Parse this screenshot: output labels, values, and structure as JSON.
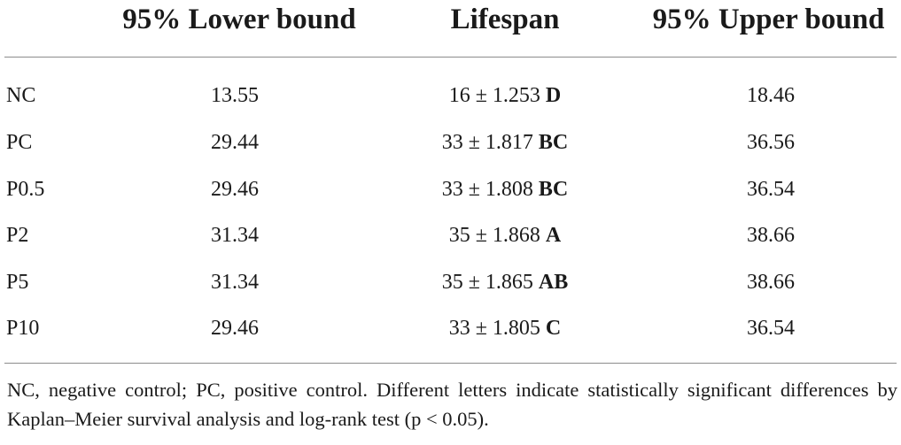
{
  "table": {
    "headers": [
      "",
      "95% Lower bound",
      "Lifespan",
      "95% Upper bound"
    ],
    "rows": [
      {
        "group": "NC",
        "lower": "13.55",
        "lifespan": "16 ± 1.253",
        "letters": "D",
        "upper": "18.46"
      },
      {
        "group": "PC",
        "lower": "29.44",
        "lifespan": "33 ± 1.817",
        "letters": "BC",
        "upper": "36.56"
      },
      {
        "group": "P0.5",
        "lower": "29.46",
        "lifespan": "33 ± 1.808",
        "letters": "BC",
        "upper": "36.54"
      },
      {
        "group": "P2",
        "lower": "31.34",
        "lifespan": "35 ± 1.868",
        "letters": "A",
        "upper": "38.66"
      },
      {
        "group": "P5",
        "lower": "31.34",
        "lifespan": "35 ± 1.865",
        "letters": "AB",
        "upper": "38.66"
      },
      {
        "group": "P10",
        "lower": "29.46",
        "lifespan": "33 ± 1.805",
        "letters": "C",
        "upper": "36.54"
      }
    ]
  },
  "footnote": "NC, negative control; PC, positive control. Different letters indicate statistically significant differences by Kaplan–Meier survival analysis and log-rank test (p < 0.05)."
}
